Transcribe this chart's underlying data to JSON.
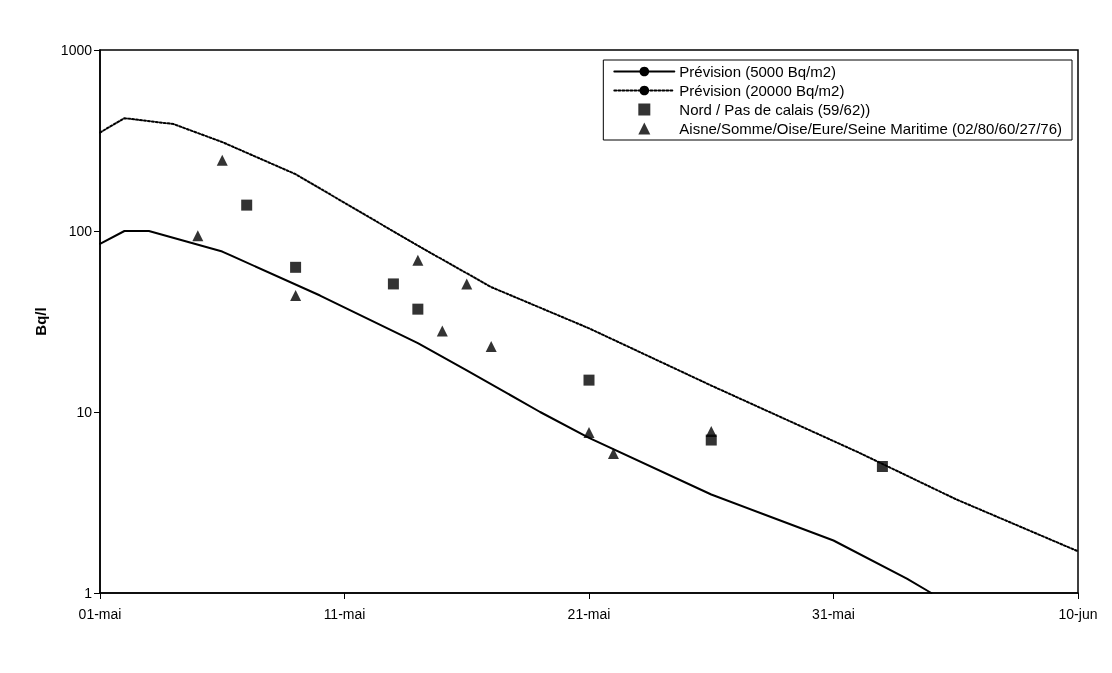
{
  "chart_data": {
    "type": "line",
    "ylabel": "Bq/l",
    "log": "y",
    "grid": false,
    "legend": "top right",
    "xlim": [
      "--05-01",
      "--06-10"
    ],
    "xticks": [
      {
        "value": "--05-01",
        "label": "01-mai"
      },
      {
        "value": "--05-11",
        "label": "11-mai"
      },
      {
        "value": "--05-21",
        "label": "21-mai"
      },
      {
        "value": "--05-31",
        "label": "31-mai"
      },
      {
        "value": "--06-10",
        "label": "10-jun"
      }
    ],
    "ylim": [
      1,
      1000
    ],
    "yticks": [
      1,
      10,
      100,
      1000
    ],
    "series": [
      {
        "name": "Prévision (5000 Bq/m2)",
        "color": "#000000",
        "line_style": "solid",
        "marker": "none",
        "x": [
          "--05-01",
          "--05-02",
          "--05-03",
          "--05-06",
          "--05-10",
          "--05-14",
          "--05-16",
          "--05-19",
          "--05-21",
          "--05-26",
          "--05-31",
          "--06-03",
          "--06-04"
        ],
        "values": [
          85,
          100,
          100,
          77,
          44,
          24,
          17,
          10,
          7.2,
          3.5,
          1.95,
          1.2,
          1.0
        ]
      },
      {
        "name": "Prévision (20000 Bq/m2)",
        "color": "#000000",
        "line_style": "dotted",
        "marker": "none",
        "x": [
          "--05-01",
          "--05-02",
          "--05-04",
          "--05-06",
          "--05-09",
          "--05-14",
          "--05-17",
          "--05-21",
          "--05-26",
          "--06-01",
          "--06-05",
          "--06-10"
        ],
        "values": [
          350,
          420,
          390,
          310,
          206,
          83,
          49,
          29,
          14,
          6,
          3.3,
          1.7
        ]
      },
      {
        "name": "Nord / Pas de calais (59/62))",
        "type": "scatter",
        "color": "#000000",
        "marker": "square",
        "x": [
          "--05-07",
          "--05-09",
          "--05-13",
          "--05-14",
          "--05-21",
          "--05-26",
          "--06-02"
        ],
        "values": [
          139,
          63,
          51,
          37,
          15,
          7,
          5
        ]
      },
      {
        "name": "Aisne/Somme/Oise/Eure/Seine Maritime (02/80/60/27/76)",
        "type": "scatter",
        "color": "#000000",
        "marker": "triangle",
        "x": [
          "--05-05",
          "--05-06",
          "--05-09",
          "--05-14",
          "--05-15",
          "--05-16",
          "--05-17",
          "--05-21",
          "--05-22",
          "--05-26"
        ],
        "values": [
          94,
          246,
          44,
          69,
          28,
          51,
          23,
          7.7,
          5.9,
          7.8
        ]
      }
    ]
  }
}
